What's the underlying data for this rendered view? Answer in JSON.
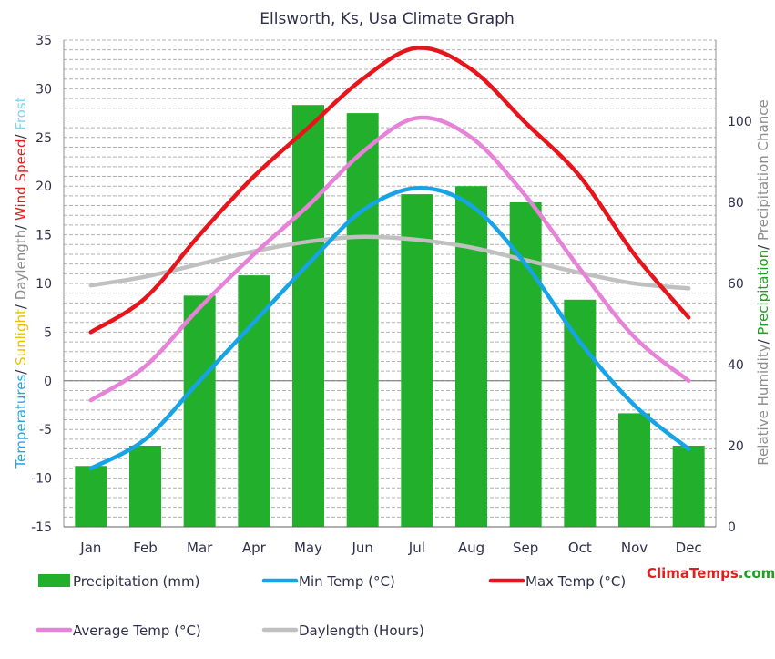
{
  "title": "Ellsworth, Ks, Usa Climate Graph",
  "brand": {
    "part1": "Clima",
    "part2": "Temps",
    "part3": ".com",
    "color1": "#e02020",
    "color2": "#e02020",
    "color3": "#20a020"
  },
  "left_axis_title": [
    {
      "text": "Temperatures",
      "color": "#2aa4e0"
    },
    {
      "text": "/ ",
      "color": "#2e2e4a"
    },
    {
      "text": "Sunlight",
      "color": "#e8c000"
    },
    {
      "text": "/ ",
      "color": "#2e2e4a"
    },
    {
      "text": "Daylength",
      "color": "#8c8c8c"
    },
    {
      "text": "/ ",
      "color": "#2e2e4a"
    },
    {
      "text": "Wind Speed",
      "color": "#e02020"
    },
    {
      "text": "/ ",
      "color": "#2e2e4a"
    },
    {
      "text": "Frost",
      "color": "#7fd4ee"
    }
  ],
  "right_axis_title": [
    {
      "text": "Relative Humidity",
      "color": "#8c8c8c"
    },
    {
      "text": "/ ",
      "color": "#2e2e4a"
    },
    {
      "text": "Precipitation",
      "color": "#20a020"
    },
    {
      "text": "/ ",
      "color": "#2e2e4a"
    },
    {
      "text": "Precipitation Chance",
      "color": "#8c8c8c"
    }
  ],
  "chart_data": {
    "type": "bar",
    "categories": [
      "Jan",
      "Feb",
      "Mar",
      "Apr",
      "May",
      "Jun",
      "Jul",
      "Aug",
      "Sep",
      "Oct",
      "Nov",
      "Dec"
    ],
    "left_axis": {
      "min": -15,
      "max": 35,
      "ticks": [
        -15,
        -10,
        -5,
        0,
        5,
        10,
        15,
        20,
        25,
        30,
        35
      ]
    },
    "right_axis": {
      "min": 0,
      "max": 120,
      "ticks": [
        0,
        20,
        40,
        60,
        80,
        100
      ]
    },
    "grid": true,
    "series": [
      {
        "name": "Precipitation (mm)",
        "kind": "bar",
        "axis": "right",
        "color": "#22b02c",
        "values": [
          15,
          20,
          57,
          62,
          104,
          102,
          82,
          84,
          80,
          56,
          28,
          20
        ]
      },
      {
        "name": "Min Temp (°C)",
        "kind": "line",
        "axis": "left",
        "color": "#16a4e6",
        "values": [
          -9,
          -6,
          0,
          6,
          12,
          17.5,
          19.8,
          18,
          12,
          4,
          -2.5,
          -7
        ]
      },
      {
        "name": "Max Temp (°C)",
        "kind": "line",
        "axis": "left",
        "color": "#e8141c",
        "values": [
          5,
          8.5,
          15,
          21,
          26,
          31,
          34.2,
          32,
          26.5,
          21,
          13,
          6.5
        ]
      },
      {
        "name": "Average Temp (°C)",
        "kind": "line",
        "axis": "left",
        "color": "#e682d8",
        "values": [
          -2,
          1.5,
          7.5,
          13,
          18,
          23.5,
          27,
          25,
          19,
          11.5,
          4.5,
          0
        ]
      },
      {
        "name": "Daylength (Hours)",
        "kind": "line",
        "axis": "left",
        "color": "#c0c0c0",
        "values": [
          9.8,
          10.7,
          12,
          13.3,
          14.3,
          14.8,
          14.5,
          13.7,
          12.4,
          11.1,
          10,
          9.5
        ]
      }
    ],
    "legend_position": "bottom"
  }
}
